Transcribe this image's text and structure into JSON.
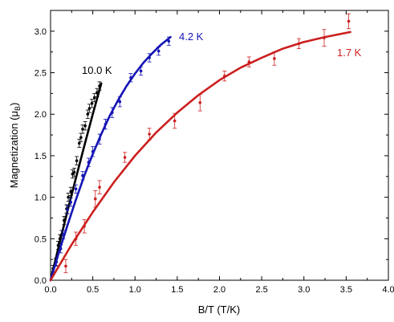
{
  "chart_data": {
    "type": "scatter",
    "xlabel": "B/T (T/K)",
    "ylabel_main": "Magnetization (",
    "ylabel_sym": "μ",
    "ylabel_sub": "B",
    "ylabel_end": ")",
    "xlim": [
      0.0,
      4.0
    ],
    "ylim": [
      0.0,
      3.25
    ],
    "xticks": [
      "0.0",
      "0.5",
      "1.0",
      "1.5",
      "2.0",
      "2.5",
      "3.0",
      "3.5",
      "4.0"
    ],
    "yticks": [
      "0.0",
      "0.5",
      "1.0",
      "1.5",
      "2.0",
      "2.5",
      "3.0"
    ],
    "grid": false,
    "series": [
      {
        "label": "10.0 K",
        "color": "#000000",
        "curve": [
          [
            0.0,
            0.0
          ],
          [
            0.1,
            0.42
          ],
          [
            0.2,
            0.83
          ],
          [
            0.3,
            1.23
          ],
          [
            0.4,
            1.62
          ],
          [
            0.5,
            2.0
          ],
          [
            0.6,
            2.37
          ]
        ],
        "points": [
          [
            0.03,
            0.14,
            0.04
          ],
          [
            0.06,
            0.22,
            0.04
          ],
          [
            0.09,
            0.42,
            0.05
          ],
          [
            0.11,
            0.5,
            0.05
          ],
          [
            0.13,
            0.55,
            0.05
          ],
          [
            0.16,
            0.72,
            0.05
          ],
          [
            0.19,
            0.86,
            0.05
          ],
          [
            0.21,
            1.0,
            0.05
          ],
          [
            0.24,
            1.07,
            0.05
          ],
          [
            0.26,
            1.28,
            0.05
          ],
          [
            0.28,
            1.3,
            0.05
          ],
          [
            0.31,
            1.44,
            0.05
          ],
          [
            0.34,
            1.65,
            0.05
          ],
          [
            0.36,
            1.72,
            0.05
          ],
          [
            0.38,
            1.82,
            0.05
          ],
          [
            0.41,
            1.86,
            0.05
          ],
          [
            0.44,
            2.0,
            0.05
          ],
          [
            0.46,
            2.07,
            0.05
          ],
          [
            0.49,
            2.13,
            0.05
          ],
          [
            0.52,
            2.2,
            0.05
          ],
          [
            0.55,
            2.26,
            0.05
          ],
          [
            0.58,
            2.34,
            0.05
          ]
        ]
      },
      {
        "label": "4.2 K",
        "color": "#1515b5",
        "curve": [
          [
            0.0,
            0.0
          ],
          [
            0.1,
            0.34
          ],
          [
            0.2,
            0.66
          ],
          [
            0.3,
            0.97
          ],
          [
            0.4,
            1.26
          ],
          [
            0.5,
            1.52
          ],
          [
            0.6,
            1.76
          ],
          [
            0.7,
            1.98
          ],
          [
            0.8,
            2.17
          ],
          [
            0.9,
            2.34
          ],
          [
            1.0,
            2.49
          ],
          [
            1.1,
            2.62
          ],
          [
            1.2,
            2.73
          ],
          [
            1.3,
            2.83
          ],
          [
            1.42,
            2.93
          ]
        ],
        "points": [
          [
            0.07,
            0.22,
            0.05
          ],
          [
            0.12,
            0.38,
            0.05
          ],
          [
            0.15,
            0.55,
            0.05
          ],
          [
            0.2,
            0.85,
            0.05
          ],
          [
            0.24,
            0.94,
            0.05
          ],
          [
            0.3,
            1.1,
            0.05
          ],
          [
            0.38,
            1.26,
            0.05
          ],
          [
            0.45,
            1.42,
            0.05
          ],
          [
            0.5,
            1.55,
            0.06
          ],
          [
            0.58,
            1.7,
            0.06
          ],
          [
            0.65,
            1.88,
            0.06
          ],
          [
            0.73,
            2.02,
            0.06
          ],
          [
            0.82,
            2.15,
            0.06
          ],
          [
            0.95,
            2.44,
            0.05
          ],
          [
            1.07,
            2.52,
            0.05
          ],
          [
            1.17,
            2.68,
            0.05
          ],
          [
            1.28,
            2.76,
            0.05
          ],
          [
            1.4,
            2.88,
            0.05
          ]
        ]
      },
      {
        "label": "1.7 K",
        "color": "#cc1f1f",
        "curve": [
          [
            0.0,
            0.0
          ],
          [
            0.25,
            0.43
          ],
          [
            0.5,
            0.82
          ],
          [
            0.75,
            1.18
          ],
          [
            1.0,
            1.5
          ],
          [
            1.25,
            1.78
          ],
          [
            1.5,
            2.02
          ],
          [
            1.75,
            2.23
          ],
          [
            2.0,
            2.41
          ],
          [
            2.25,
            2.56
          ],
          [
            2.5,
            2.68
          ],
          [
            2.75,
            2.79
          ],
          [
            3.0,
            2.87
          ],
          [
            3.25,
            2.93
          ],
          [
            3.55,
            2.99
          ]
        ],
        "points": [
          [
            0.18,
            0.17,
            0.08
          ],
          [
            0.3,
            0.5,
            0.08
          ],
          [
            0.4,
            0.65,
            0.08
          ],
          [
            0.53,
            0.98,
            0.1
          ],
          [
            0.58,
            1.12,
            0.08
          ],
          [
            0.88,
            1.48,
            0.06
          ],
          [
            1.17,
            1.76,
            0.07
          ],
          [
            1.47,
            1.92,
            0.09
          ],
          [
            1.77,
            2.14,
            0.1
          ],
          [
            2.06,
            2.46,
            0.06
          ],
          [
            2.35,
            2.63,
            0.06
          ],
          [
            2.65,
            2.67,
            0.08
          ],
          [
            2.94,
            2.85,
            0.06
          ],
          [
            3.24,
            2.92,
            0.1
          ],
          [
            3.53,
            3.12,
            0.09
          ]
        ]
      }
    ]
  }
}
